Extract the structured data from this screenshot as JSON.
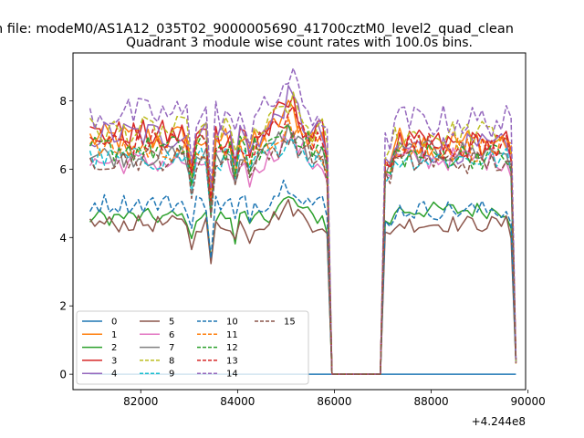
{
  "header_text": "n file: modeM0/AS1A12_035T02_9000005690_41700cztM0_level2_quad_clean",
  "chart_data": {
    "type": "line",
    "title": "Quadrant 3 module wise count rates with 100.0s bins.",
    "xlabel": "",
    "ylabel": "",
    "x_offset_text": "+4.244e8",
    "x_offset": 424400000,
    "xlim": [
      80600,
      89950
    ],
    "ylim": [
      -0.45,
      9.4
    ],
    "xticks": [
      82000,
      84000,
      86000,
      88000,
      90000
    ],
    "xtick_labels": [
      "82000",
      "84000",
      "86000",
      "88000",
      "90000"
    ],
    "yticks": [
      0,
      2,
      4,
      6,
      8
    ],
    "ytick_labels": [
      "0",
      "2",
      "4",
      "6",
      "8"
    ],
    "grid": false,
    "legend": {
      "placement": "lower-left",
      "columns": 4
    },
    "x_range": {
      "start": 80950,
      "end": 89750,
      "step": 100
    },
    "gap": {
      "drop_start": 85850,
      "zero_start": 85950,
      "zero_end": 86950,
      "rise_end": 87150
    },
    "series": [
      {
        "name": "0",
        "color": "#1f77b4",
        "dash": "solid",
        "flat_zero": true
      },
      {
        "name": "1",
        "color": "#ff7f0e",
        "dash": "solid",
        "level1": 6.9,
        "level2": 6.8,
        "amp": 0.45,
        "peak": 0.8
      },
      {
        "name": "2",
        "color": "#2ca02c",
        "dash": "solid",
        "level1": 4.6,
        "level2": 4.8,
        "amp": 0.25,
        "peak": 0.5
      },
      {
        "name": "3",
        "color": "#d62728",
        "dash": "solid",
        "level1": 7.0,
        "level2": 6.7,
        "amp": 0.45,
        "peak": 0.9
      },
      {
        "name": "4",
        "color": "#9467bd",
        "dash": "solid",
        "level1": 7.0,
        "level2": 6.6,
        "amp": 0.45,
        "peak": 1.0
      },
      {
        "name": "5",
        "color": "#8c564b",
        "dash": "solid",
        "level1": 4.4,
        "level2": 4.4,
        "amp": 0.25,
        "peak": 0.5
      },
      {
        "name": "6",
        "color": "#e377c2",
        "dash": "solid",
        "level1": 6.2,
        "level2": 6.3,
        "amp": 0.35,
        "peak": 0.7
      },
      {
        "name": "7",
        "color": "#7f7f7f",
        "dash": "solid",
        "level1": 6.4,
        "level2": 6.5,
        "amp": 0.35,
        "peak": 0.7
      },
      {
        "name": "8",
        "color": "#bcbd22",
        "dash": "dashed",
        "level1": 7.1,
        "level2": 7.0,
        "amp": 0.45,
        "peak": 0.8
      },
      {
        "name": "9",
        "color": "#17becf",
        "dash": "dashed",
        "level1": 6.3,
        "level2": 6.3,
        "amp": 0.35,
        "peak": 0.6
      },
      {
        "name": "10",
        "color": "#1f77b4",
        "dash": "dashed",
        "level1": 5.0,
        "level2": 4.8,
        "amp": 0.3,
        "peak": 0.6
      },
      {
        "name": "11",
        "color": "#ff7f0e",
        "dash": "dashed",
        "level1": 6.6,
        "level2": 6.6,
        "amp": 0.4,
        "peak": 0.7
      },
      {
        "name": "12",
        "color": "#2ca02c",
        "dash": "dashed",
        "level1": 6.6,
        "level2": 6.4,
        "amp": 0.4,
        "peak": 0.7
      },
      {
        "name": "13",
        "color": "#d62728",
        "dash": "dashed",
        "level1": 6.8,
        "level2": 6.7,
        "amp": 0.4,
        "peak": 0.8
      },
      {
        "name": "14",
        "color": "#9467bd",
        "dash": "dashed",
        "level1": 7.6,
        "level2": 7.4,
        "amp": 0.5,
        "peak": 1.0
      },
      {
        "name": "15",
        "color": "#8c564b",
        "dash": "dashed",
        "level1": 6.3,
        "level2": 6.2,
        "amp": 0.35,
        "peak": 0.6
      }
    ],
    "dips": [
      {
        "x": 83050,
        "factor": 0.82
      },
      {
        "x": 83450,
        "factor": 0.7
      },
      {
        "x": 83950,
        "factor": 0.86
      },
      {
        "x": 84250,
        "factor": 0.88
      },
      {
        "x": 87050,
        "factor": 0.9
      },
      {
        "x": 89650,
        "factor": 0.92
      }
    ]
  }
}
